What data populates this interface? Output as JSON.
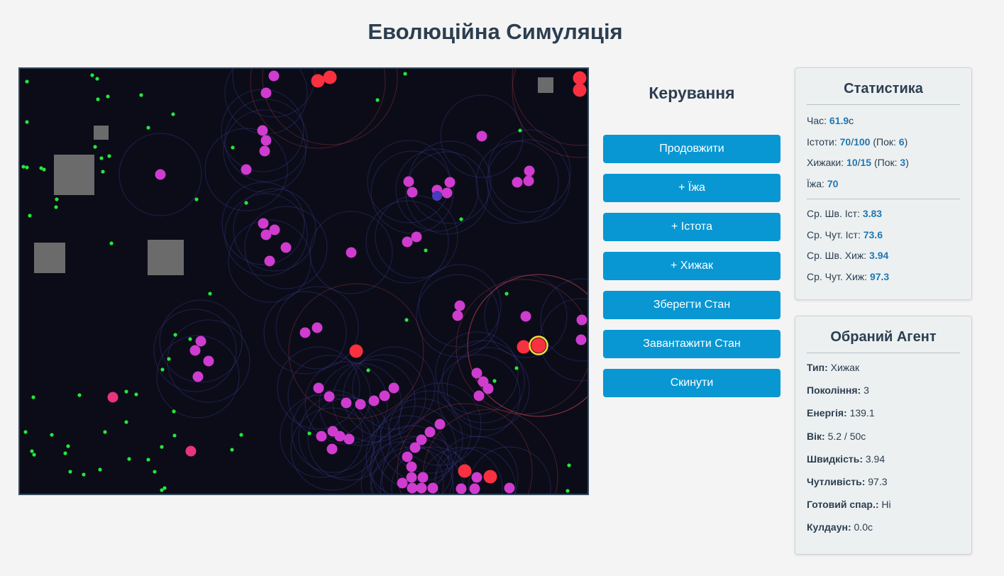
{
  "title": "Еволюційна Симуляція",
  "controls": {
    "heading": "Керування",
    "buttons": [
      {
        "id": "resume",
        "label": "Продовжити"
      },
      {
        "id": "add-food",
        "label": "+ Їжа"
      },
      {
        "id": "add-creature",
        "label": "+ Істота"
      },
      {
        "id": "add-predator",
        "label": "+ Хижак"
      },
      {
        "id": "save-state",
        "label": "Зберегти Стан"
      },
      {
        "id": "load-state",
        "label": "Завантажити Стан"
      },
      {
        "id": "reset",
        "label": "Скинути"
      }
    ]
  },
  "stats": {
    "heading": "Статистика",
    "time_label": "Час:",
    "time_value": "61.9",
    "time_unit": "с",
    "creatures_label": "Істоти:",
    "creatures_count": "70",
    "creatures_max": "100",
    "creatures_gen_label": "(Пок:",
    "creatures_gen": "6",
    "predators_label": "Хижаки:",
    "predators_count": "10",
    "predators_max": "15",
    "predators_gen_label": "(Пок:",
    "predators_gen": "3",
    "food_label": "Їжа:",
    "food_value": "70",
    "avg_speed_creature_label": "Ср. Шв. Іст:",
    "avg_speed_creature": "3.83",
    "avg_sense_creature_label": "Ср. Чут. Іст:",
    "avg_sense_creature": "73.6",
    "avg_speed_predator_label": "Ср. Шв. Хиж:",
    "avg_speed_predator": "3.94",
    "avg_sense_predator_label": "Ср. Чут. Хиж:",
    "avg_sense_predator": "97.3"
  },
  "agent": {
    "heading": "Обраний Агент",
    "type_label": "Тип:",
    "type_value": "Хижак",
    "generation_label": "Покоління:",
    "generation_value": "3",
    "energy_label": "Енергія:",
    "energy_value": "139.1",
    "age_label": "Вік:",
    "age_value": "5.2 / 50с",
    "speed_label": "Швидкість:",
    "speed_value": "3.94",
    "sense_label": "Чутливість:",
    "sense_value": "97.3",
    "breed_label": "Готовий спар.:",
    "breed_value": "Ні",
    "cooldown_label": "Кулдаун:",
    "cooldown_value": "0.0с"
  },
  "colors": {
    "background": "#0b0c18",
    "food": "#22e83a",
    "creature": "#cf3ccf",
    "creature_alt": "#e8337f",
    "predator": "#f8303f",
    "selected_ring": "#f3e03a",
    "obstacle": "#6b6b6b",
    "button": "#0897d3"
  }
}
